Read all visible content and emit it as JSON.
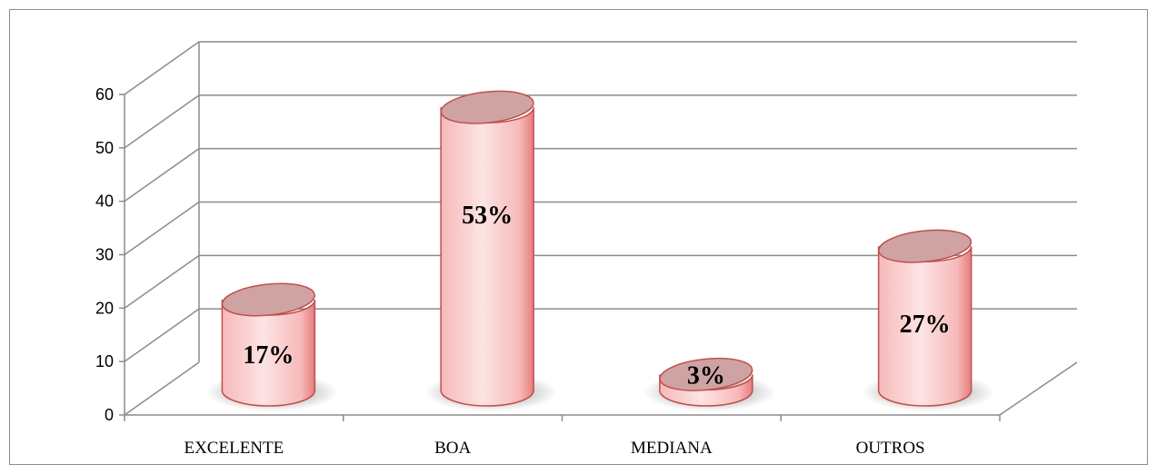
{
  "chart_data": {
    "type": "bar",
    "style": "3d-cylinder",
    "categories": [
      "EXCELENTE",
      "BOA",
      "MEDIANA",
      "OUTROS"
    ],
    "values": [
      17,
      53,
      3,
      27
    ],
    "data_labels": [
      "17%",
      "53%",
      "3%",
      "27%"
    ],
    "title": "",
    "xlabel": "",
    "ylabel": "",
    "ylim": [
      0,
      60
    ],
    "yticks": [
      "0",
      "10",
      "20",
      "30",
      "40",
      "50",
      "60"
    ],
    "grid": true,
    "legend": "none",
    "colors": {
      "bar_light": "#fde4e4",
      "bar_mid": "#f6b9b9",
      "bar_dark": "#e57c7c",
      "bar_edge": "#c0504d",
      "top_fill": "#cfa3a3",
      "grid": "#8c8c8c"
    }
  }
}
